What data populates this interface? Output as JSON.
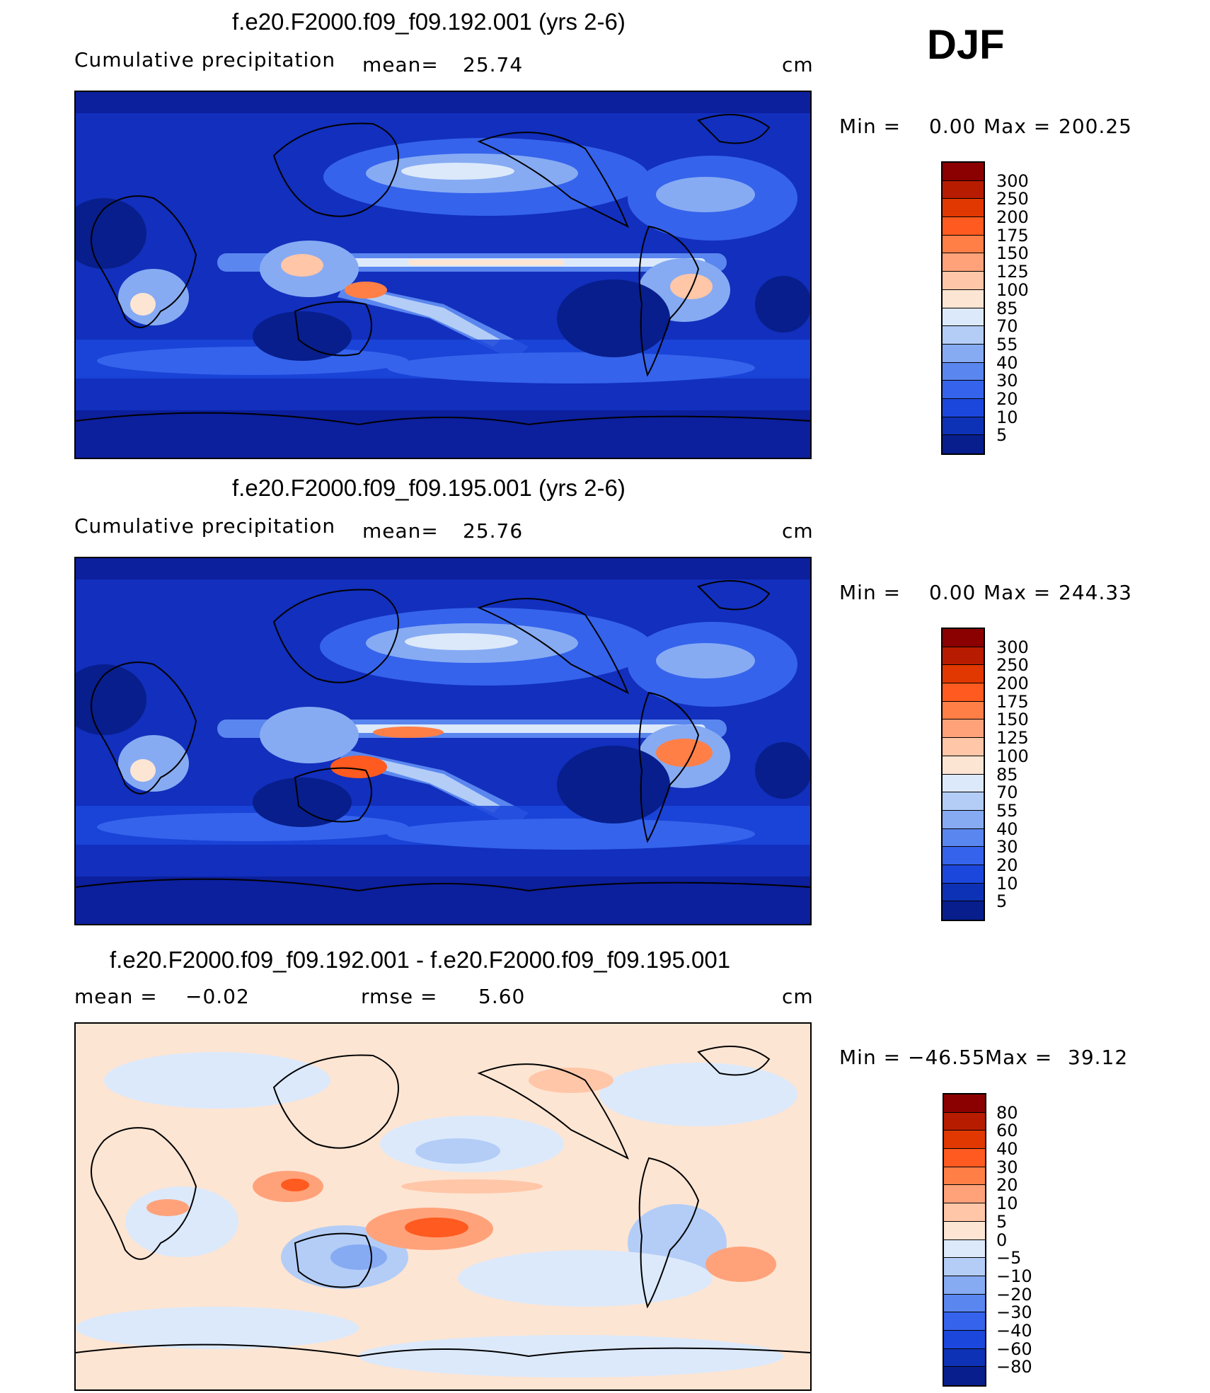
{
  "season": "DJF",
  "units": "cm",
  "colors": {
    "map_background_blue": "#0c1f9c",
    "map_background_diff": "#fde3d3",
    "coast": "#000000"
  },
  "panels": [
    {
      "title": "f.e20.F2000.f09_f09.192.001 (yrs 2-6)",
      "variable": "Cumulative precipitation",
      "stat1_label": "mean=",
      "stat1_value": "25.74",
      "stat2_label": "",
      "stat2_value": "",
      "units": "cm",
      "min_label": "Min =",
      "min_value": "0.00",
      "max_label": "Max =",
      "max_value": "200.25",
      "colorbar": {
        "labels": [
          "300",
          "250",
          "200",
          "175",
          "150",
          "125",
          "100",
          "85",
          "70",
          "55",
          "40",
          "30",
          "20",
          "10",
          "5"
        ],
        "colors": [
          "#8b0000",
          "#b71c00",
          "#e03800",
          "#ff5a1f",
          "#ff7f47",
          "#ffa27a",
          "#ffc6a8",
          "#fde5d3",
          "#dce9fb",
          "#b3cdf7",
          "#86abf3",
          "#5a86ef",
          "#3563ec",
          "#1c47dc",
          "#0e32b5",
          "#071e8c"
        ]
      }
    },
    {
      "title": "f.e20.F2000.f09_f09.195.001 (yrs 2-6)",
      "variable": "Cumulative precipitation",
      "stat1_label": "mean=",
      "stat1_value": "25.76",
      "stat2_label": "",
      "stat2_value": "",
      "units": "cm",
      "min_label": "Min =",
      "min_value": "0.00",
      "max_label": "Max =",
      "max_value": "244.33",
      "colorbar": {
        "labels": [
          "300",
          "250",
          "200",
          "175",
          "150",
          "125",
          "100",
          "85",
          "70",
          "55",
          "40",
          "30",
          "20",
          "10",
          "5"
        ],
        "colors": [
          "#8b0000",
          "#b71c00",
          "#e03800",
          "#ff5a1f",
          "#ff7f47",
          "#ffa27a",
          "#ffc6a8",
          "#fde5d3",
          "#dce9fb",
          "#b3cdf7",
          "#86abf3",
          "#5a86ef",
          "#3563ec",
          "#1c47dc",
          "#0e32b5",
          "#071e8c"
        ]
      }
    },
    {
      "title": "f.e20.F2000.f09_f09.192.001 - f.e20.F2000.f09_f09.195.001",
      "variable": "",
      "stat1_label": "mean =",
      "stat1_value": "−0.02",
      "stat2_label": "rmse =",
      "stat2_value": "5.60",
      "units": "cm",
      "min_label": "Min =",
      "min_value": "−46.55",
      "max_label": "Max =",
      "max_value": "39.12",
      "colorbar": {
        "labels": [
          "80",
          "60",
          "40",
          "30",
          "20",
          "10",
          "5",
          "0",
          "−5",
          "−10",
          "−20",
          "−30",
          "−40",
          "−60",
          "−80"
        ],
        "colors": [
          "#8b0000",
          "#b71c00",
          "#e03800",
          "#ff5a1f",
          "#ff7f47",
          "#ffa27a",
          "#ffc6a8",
          "#fde5d3",
          "#dce9fb",
          "#b3cdf7",
          "#86abf3",
          "#5a86ef",
          "#3563ec",
          "#1c47dc",
          "#0e32b5",
          "#071e8c"
        ]
      }
    }
  ],
  "chart_data": [
    {
      "type": "heatmap",
      "title": "f.e20.F2000.f09_f09.192.001 (yrs 2-6)",
      "variable": "Cumulative precipitation",
      "units": "cm",
      "mean": 25.74,
      "min": 0.0,
      "max": 200.25,
      "contour_levels": [
        5,
        10,
        20,
        30,
        40,
        55,
        70,
        85,
        100,
        125,
        150,
        175,
        200,
        250,
        300
      ]
    },
    {
      "type": "heatmap",
      "title": "f.e20.F2000.f09_f09.195.001 (yrs 2-6)",
      "variable": "Cumulative precipitation",
      "units": "cm",
      "mean": 25.76,
      "min": 0.0,
      "max": 244.33,
      "contour_levels": [
        5,
        10,
        20,
        30,
        40,
        55,
        70,
        85,
        100,
        125,
        150,
        175,
        200,
        250,
        300
      ]
    },
    {
      "type": "heatmap",
      "title": "f.e20.F2000.f09_f09.192.001 - f.e20.F2000.f09_f09.195.001",
      "units": "cm",
      "mean": -0.02,
      "rmse": 5.6,
      "min": -46.55,
      "max": 39.12,
      "contour_levels": [
        -80,
        -60,
        -40,
        -30,
        -20,
        -10,
        -5,
        0,
        5,
        10,
        20,
        30,
        40,
        60,
        80
      ]
    }
  ]
}
